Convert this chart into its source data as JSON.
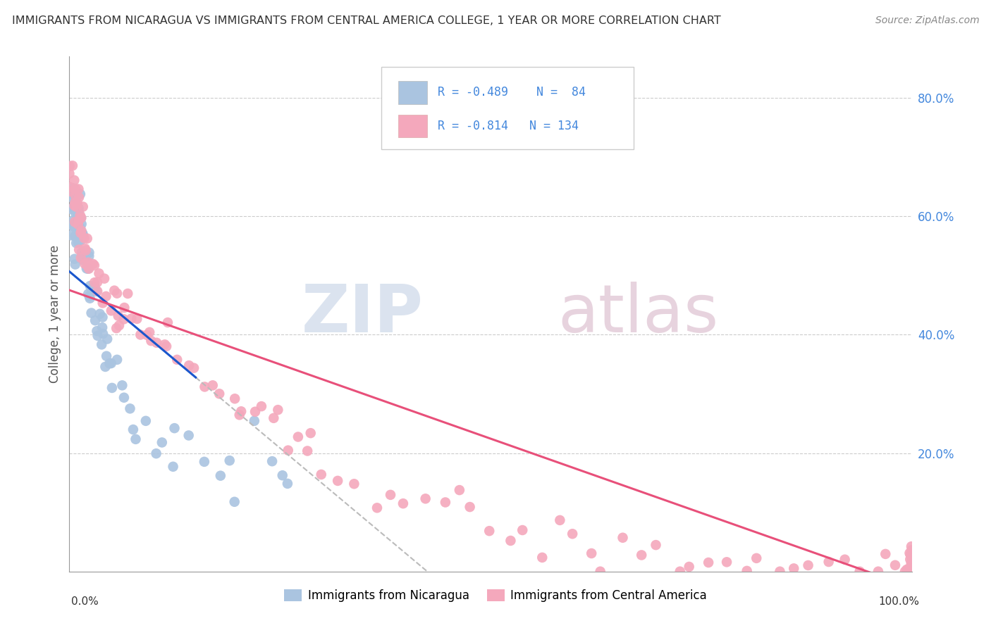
{
  "title": "IMMIGRANTS FROM NICARAGUA VS IMMIGRANTS FROM CENTRAL AMERICA COLLEGE, 1 YEAR OR MORE CORRELATION CHART",
  "source": "Source: ZipAtlas.com",
  "ylabel": "College, 1 year or more",
  "legend_label1": "Immigrants from Nicaragua",
  "legend_label2": "Immigrants from Central America",
  "R1": -0.489,
  "N1": 84,
  "R2": -0.814,
  "N2": 134,
  "color1": "#aac4e0",
  "color2": "#f4a8bc",
  "line1_color": "#1a56cc",
  "line2_color": "#e8507a",
  "dash_color": "#bbbbbb",
  "background_color": "#ffffff",
  "grid_color": "#cccccc",
  "title_color": "#333333",
  "right_tick_color": "#4488dd",
  "watermark_zip_color": "#b8c8e0",
  "watermark_atlas_color": "#d0a8be",
  "xlim": [
    0.0,
    1.0
  ],
  "ylim": [
    0.0,
    0.87
  ],
  "right_yticks": [
    0.0,
    0.2,
    0.4,
    0.6,
    0.8
  ],
  "right_yticklabels": [
    "",
    "20.0%",
    "40.0%",
    "60.0%",
    "80.0%"
  ],
  "grid_yticks": [
    0.2,
    0.4,
    0.6,
    0.8
  ],
  "x1_seed_data": [
    0.001,
    0.002,
    0.003,
    0.003,
    0.004,
    0.004,
    0.005,
    0.005,
    0.005,
    0.006,
    0.006,
    0.007,
    0.007,
    0.008,
    0.008,
    0.008,
    0.009,
    0.009,
    0.01,
    0.01,
    0.01,
    0.011,
    0.011,
    0.012,
    0.012,
    0.013,
    0.013,
    0.014,
    0.014,
    0.015,
    0.015,
    0.016,
    0.016,
    0.017,
    0.018,
    0.018,
    0.02,
    0.02,
    0.021,
    0.022,
    0.022,
    0.023,
    0.024,
    0.025,
    0.025,
    0.026,
    0.027,
    0.028,
    0.03,
    0.03,
    0.032,
    0.033,
    0.035,
    0.035,
    0.037,
    0.038,
    0.04,
    0.04,
    0.042,
    0.043,
    0.045,
    0.05,
    0.05,
    0.053,
    0.055,
    0.06,
    0.065,
    0.07,
    0.075,
    0.08,
    0.09,
    0.1,
    0.11,
    0.12,
    0.13,
    0.14,
    0.16,
    0.18,
    0.19,
    0.2,
    0.22,
    0.24,
    0.25,
    0.26
  ],
  "y1_seed_data": [
    0.58,
    0.62,
    0.57,
    0.63,
    0.6,
    0.64,
    0.58,
    0.61,
    0.65,
    0.59,
    0.62,
    0.55,
    0.6,
    0.58,
    0.63,
    0.57,
    0.54,
    0.61,
    0.56,
    0.6,
    0.64,
    0.55,
    0.58,
    0.57,
    0.61,
    0.56,
    0.59,
    0.54,
    0.58,
    0.55,
    0.6,
    0.53,
    0.57,
    0.55,
    0.52,
    0.56,
    0.5,
    0.54,
    0.51,
    0.49,
    0.53,
    0.5,
    0.48,
    0.47,
    0.51,
    0.49,
    0.46,
    0.48,
    0.44,
    0.47,
    0.42,
    0.45,
    0.41,
    0.44,
    0.4,
    0.42,
    0.38,
    0.41,
    0.37,
    0.39,
    0.36,
    0.34,
    0.37,
    0.33,
    0.35,
    0.31,
    0.29,
    0.27,
    0.25,
    0.22,
    0.25,
    0.21,
    0.19,
    0.17,
    0.26,
    0.22,
    0.2,
    0.15,
    0.17,
    0.13,
    0.24,
    0.18,
    0.15,
    0.12
  ],
  "x2_seed_data": [
    0.001,
    0.002,
    0.003,
    0.003,
    0.004,
    0.005,
    0.005,
    0.006,
    0.007,
    0.007,
    0.008,
    0.008,
    0.009,
    0.009,
    0.01,
    0.01,
    0.011,
    0.012,
    0.012,
    0.013,
    0.014,
    0.014,
    0.015,
    0.016,
    0.017,
    0.018,
    0.019,
    0.02,
    0.021,
    0.022,
    0.023,
    0.025,
    0.027,
    0.028,
    0.03,
    0.032,
    0.034,
    0.036,
    0.038,
    0.04,
    0.042,
    0.045,
    0.048,
    0.05,
    0.053,
    0.056,
    0.06,
    0.063,
    0.067,
    0.07,
    0.075,
    0.08,
    0.085,
    0.09,
    0.095,
    0.1,
    0.105,
    0.11,
    0.115,
    0.12,
    0.13,
    0.14,
    0.15,
    0.16,
    0.17,
    0.18,
    0.19,
    0.2,
    0.21,
    0.22,
    0.23,
    0.24,
    0.25,
    0.26,
    0.27,
    0.28,
    0.29,
    0.3,
    0.32,
    0.34,
    0.36,
    0.38,
    0.4,
    0.42,
    0.44,
    0.46,
    0.48,
    0.5,
    0.52,
    0.54,
    0.56,
    0.58,
    0.6,
    0.62,
    0.64,
    0.66,
    0.68,
    0.7,
    0.72,
    0.74,
    0.76,
    0.78,
    0.8,
    0.82,
    0.84,
    0.86,
    0.88,
    0.9,
    0.92,
    0.94,
    0.96,
    0.97,
    0.98,
    0.99,
    1.0,
    1.0,
    1.0,
    1.0,
    1.0,
    1.0,
    1.0,
    1.0,
    1.0,
    1.0,
    1.0,
    1.0,
    1.0,
    1.0,
    1.0,
    1.0,
    1.0,
    1.0,
    1.0,
    1.0
  ],
  "y2_seed_data": [
    0.67,
    0.66,
    0.65,
    0.64,
    0.66,
    0.63,
    0.65,
    0.62,
    0.64,
    0.61,
    0.63,
    0.6,
    0.62,
    0.59,
    0.61,
    0.6,
    0.58,
    0.6,
    0.57,
    0.59,
    0.56,
    0.58,
    0.55,
    0.57,
    0.54,
    0.56,
    0.53,
    0.55,
    0.52,
    0.54,
    0.51,
    0.53,
    0.5,
    0.52,
    0.49,
    0.51,
    0.48,
    0.5,
    0.47,
    0.49,
    0.46,
    0.48,
    0.45,
    0.47,
    0.44,
    0.46,
    0.43,
    0.45,
    0.42,
    0.44,
    0.41,
    0.43,
    0.4,
    0.42,
    0.39,
    0.41,
    0.38,
    0.4,
    0.37,
    0.39,
    0.36,
    0.34,
    0.33,
    0.32,
    0.31,
    0.3,
    0.29,
    0.28,
    0.27,
    0.26,
    0.25,
    0.24,
    0.23,
    0.22,
    0.21,
    0.2,
    0.19,
    0.18,
    0.17,
    0.16,
    0.15,
    0.14,
    0.13,
    0.12,
    0.11,
    0.1,
    0.09,
    0.08,
    0.07,
    0.06,
    0.05,
    0.05,
    0.04,
    0.04,
    0.03,
    0.03,
    0.03,
    0.02,
    0.02,
    0.02,
    0.015,
    0.015,
    0.01,
    0.01,
    0.01,
    0.008,
    0.008,
    0.006,
    0.006,
    0.005,
    0.005,
    0.004,
    0.004,
    0.003,
    0.003,
    0.002,
    0.002,
    0.002,
    0.001,
    0.001,
    0.001,
    0.001,
    0.001,
    0.001,
    0.001,
    0.001,
    0.001,
    0.001,
    0.001,
    0.001,
    0.001,
    0.001,
    0.001,
    0.001
  ]
}
